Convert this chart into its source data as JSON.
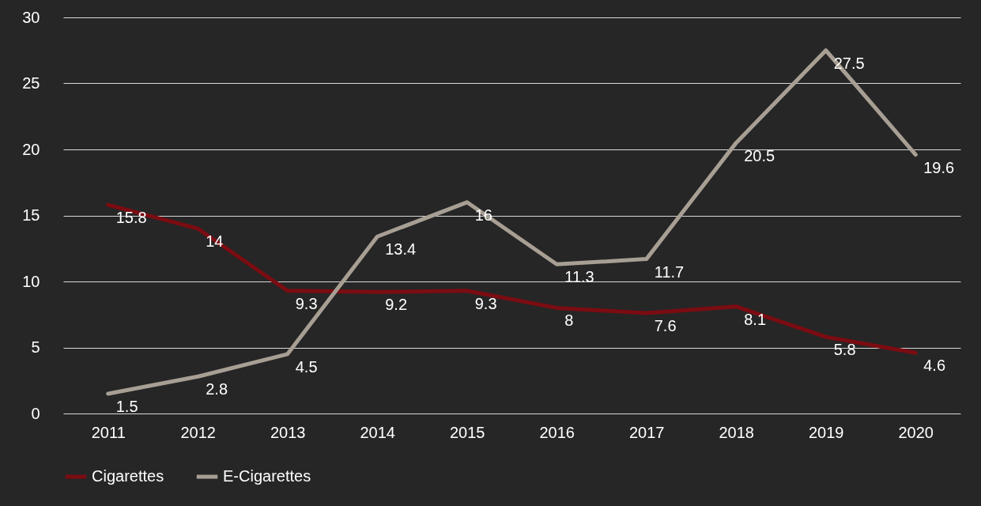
{
  "chart_data": {
    "type": "line",
    "categories": [
      "2011",
      "2012",
      "2013",
      "2014",
      "2015",
      "2016",
      "2017",
      "2018",
      "2019",
      "2020"
    ],
    "series": [
      {
        "name": "Cigarettes",
        "color": "#7b0c12",
        "values": [
          15.8,
          14,
          9.3,
          9.2,
          9.3,
          8,
          7.6,
          8.1,
          5.8,
          4.6
        ]
      },
      {
        "name": "E-Cigarettes",
        "color": "#a89f94",
        "values": [
          1.5,
          2.8,
          4.5,
          13.4,
          16,
          11.3,
          11.7,
          20.5,
          27.5,
          19.6
        ]
      }
    ],
    "ylim": [
      0,
      30
    ],
    "yticks": [
      0,
      5,
      10,
      15,
      20,
      25,
      30
    ],
    "grid": "y",
    "legend": "bottom",
    "data_labels": true
  }
}
